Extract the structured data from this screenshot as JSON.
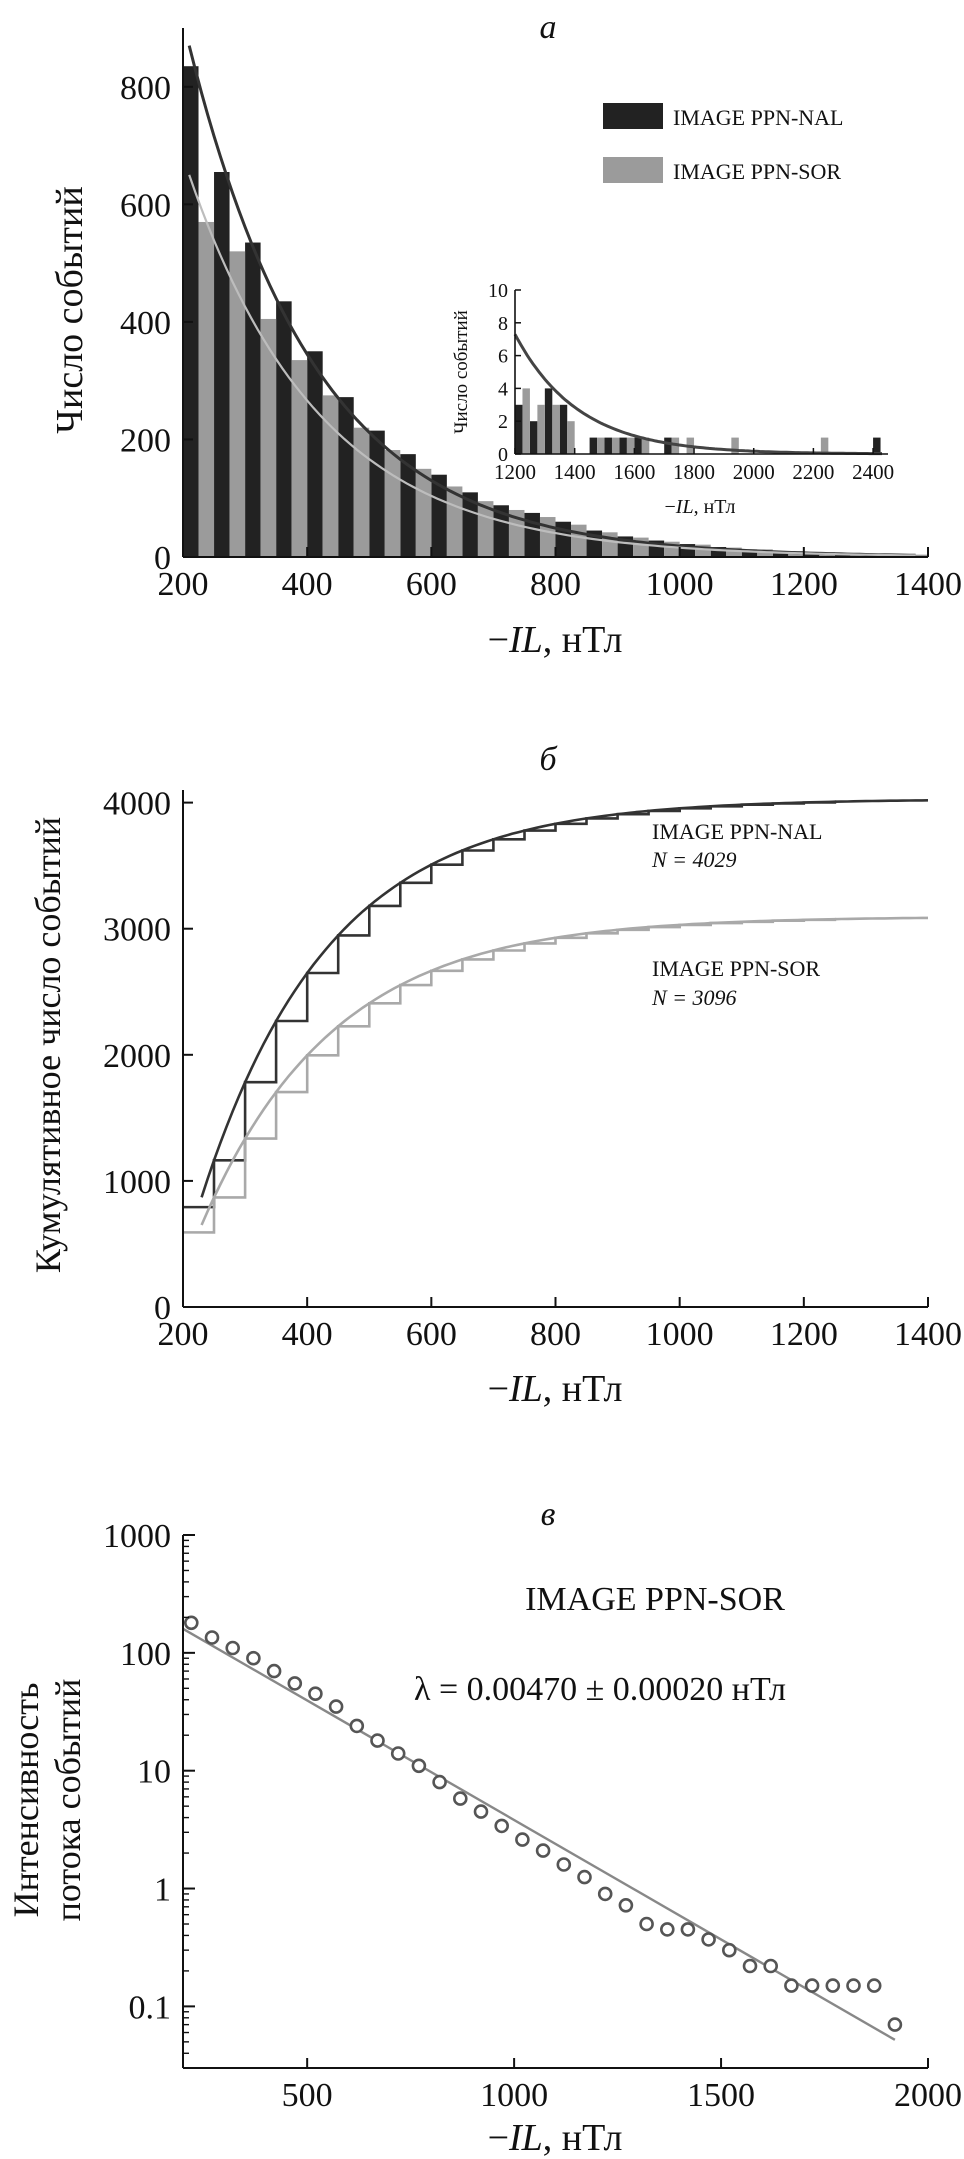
{
  "chart_data": [
    {
      "id": "a",
      "panel_label": "а",
      "type": "bar",
      "xlabel_prefix": "−",
      "xlabel_var": "IL",
      "xlabel_unit": ", нТл",
      "ylabel": "Число событий",
      "xlim": [
        200,
        1400
      ],
      "ylim": [
        0,
        900
      ],
      "xticks": [
        "200",
        "400",
        "600",
        "800",
        "1000",
        "1200",
        "1400"
      ],
      "yticks": [
        "0",
        "200",
        "400",
        "600",
        "800"
      ],
      "legend": [
        {
          "name": "IMAGE PPN-NAL",
          "color": "#222222"
        },
        {
          "name": "IMAGE PPN-SOR",
          "color": "#9b9b9b"
        }
      ],
      "series": [
        {
          "name": "IMAGE PPN-NAL",
          "color": "#222222",
          "x": [
            200,
            250,
            300,
            350,
            400,
            450,
            500,
            550,
            600,
            650,
            700,
            750,
            800,
            850,
            900,
            950,
            1000,
            1050,
            1100,
            1150,
            1200,
            1250,
            1300,
            1350
          ],
          "values": [
            835,
            655,
            535,
            435,
            350,
            272,
            215,
            175,
            140,
            110,
            88,
            75,
            60,
            45,
            35,
            28,
            22,
            17,
            13,
            10,
            8,
            6,
            5,
            4
          ]
        },
        {
          "name": "IMAGE PPN-SOR",
          "color": "#9b9b9b",
          "x": [
            200,
            250,
            300,
            350,
            400,
            450,
            500,
            550,
            600,
            650,
            700,
            750,
            800,
            850,
            900,
            950,
            1000,
            1050,
            1100,
            1150,
            1200,
            1250,
            1300,
            1350
          ],
          "values": [
            570,
            520,
            405,
            335,
            275,
            220,
            182,
            150,
            120,
            95,
            80,
            68,
            55,
            42,
            33,
            26,
            21,
            16,
            13,
            10,
            8,
            6,
            5,
            4
          ]
        }
      ],
      "fits": [
        {
          "name": "IMAGE PPN-NAL",
          "color": "#333333",
          "a": 870,
          "lambda": 0.00487
        },
        {
          "name": "IMAGE PPN-SOR",
          "color": "#bdbdbd",
          "a": 650,
          "lambda": 0.0047
        }
      ],
      "inset": {
        "type": "bar",
        "ylabel": "Число событий",
        "xlabel_prefix": "−",
        "xlabel_var": "IL",
        "xlabel_unit": ", нТл",
        "xlim": [
          1200,
          2450
        ],
        "ylim": [
          0,
          10
        ],
        "xticks": [
          "1200",
          "1400",
          "1600",
          "1800",
          "2000",
          "2200",
          "2400"
        ],
        "yticks": [
          "0",
          "2",
          "4",
          "6",
          "8",
          "10"
        ],
        "series": [
          {
            "name": "IMAGE PPN-NAL",
            "color": "#222222",
            "x": [
              1200,
              1250,
              1300,
              1350,
              1400,
              1450,
              1500,
              1550,
              1600,
              1650,
              1700,
              1750,
              1800,
              1850,
              1900,
              1950,
              2000,
              2050,
              2100,
              2150,
              2200,
              2250,
              2300,
              2350,
              2400
            ],
            "values": [
              3,
              2,
              4,
              3,
              0,
              1,
              1,
              1,
              1,
              0,
              1,
              0,
              0,
              0,
              0,
              0,
              0,
              0,
              0,
              0,
              0,
              0,
              0,
              0,
              1
            ]
          },
          {
            "name": "IMAGE PPN-SOR",
            "color": "#9b9b9b",
            "x": [
              1200,
              1250,
              1300,
              1350,
              1400,
              1450,
              1500,
              1550,
              1600,
              1650,
              1700,
              1750,
              1800,
              1850,
              1900,
              1950,
              2000,
              2050,
              2100,
              2150,
              2200,
              2250,
              2300,
              2350,
              2400
            ],
            "values": [
              4,
              3,
              3,
              2,
              0,
              1,
              1,
              1,
              1,
              0,
              1,
              1,
              0,
              0,
              1,
              0,
              0,
              0,
              0,
              0,
              1,
              0,
              0,
              0,
              0
            ]
          }
        ],
        "fit": {
          "color": "#444444",
          "a": 7.3,
          "lambda": 0.0047
        }
      }
    },
    {
      "id": "b",
      "panel_label": "б",
      "type": "line",
      "xlabel_prefix": "−",
      "xlabel_var": "IL",
      "xlabel_unit": ", нТл",
      "ylabel": "Кумулятивное число событий",
      "xlim": [
        200,
        1400
      ],
      "ylim": [
        0,
        4100
      ],
      "xticks": [
        "200",
        "400",
        "600",
        "800",
        "1000",
        "1200",
        "1400"
      ],
      "yticks": [
        "0",
        "1000",
        "2000",
        "3000",
        "4000"
      ],
      "series": [
        {
          "name": "IMAGE PPN-NAL",
          "n_label": "N = 4029",
          "total": 4029,
          "color": "#333333",
          "lambda": 0.00487,
          "fit_start": 230,
          "fit_start_value": 870
        },
        {
          "name": "IMAGE PPN-SOR",
          "n_label": "N = 3096",
          "total": 3096,
          "color": "#a9a9a9",
          "lambda": 0.0047,
          "fit_start": 230,
          "fit_start_value": 650
        }
      ]
    },
    {
      "id": "c",
      "panel_label": "в",
      "type": "scatter",
      "yscale": "log",
      "xlabel_prefix": "−",
      "xlabel_var": "IL",
      "xlabel_unit": ", нТл",
      "ylabel_lines": [
        "Интенсивность",
        "потока событий"
      ],
      "xlim": [
        200,
        2000
      ],
      "ylim": [
        0.03,
        1000
      ],
      "xticks": [
        "500",
        "1000",
        "1500",
        "2000"
      ],
      "yticks": [
        "0.1",
        "1",
        "10",
        "100",
        "1000"
      ],
      "title": "IMAGE PPN-SOR",
      "annotation": "λ = 0.00470 ± 0.00020 нТл",
      "points": {
        "x": [
          220,
          270,
          320,
          370,
          420,
          470,
          520,
          570,
          620,
          670,
          720,
          770,
          820,
          870,
          920,
          970,
          1020,
          1070,
          1120,
          1170,
          1220,
          1270,
          1320,
          1370,
          1420,
          1470,
          1520,
          1570,
          1620,
          1670,
          1720,
          1770,
          1820,
          1870,
          1920
        ],
        "y": [
          180,
          135,
          110,
          90,
          70,
          55,
          45,
          35,
          24,
          18,
          14,
          11,
          8,
          5.8,
          4.5,
          3.4,
          2.6,
          2.1,
          1.6,
          1.25,
          0.9,
          0.72,
          0.5,
          0.45,
          0.45,
          0.37,
          0.3,
          0.22,
          0.22,
          0.15,
          0.15,
          0.15,
          0.15,
          0.15,
          0.07
        ]
      },
      "fit": {
        "x": [
          200,
          1920
        ],
        "y": [
          160,
          0.052
        ],
        "color": "#888888"
      }
    }
  ]
}
